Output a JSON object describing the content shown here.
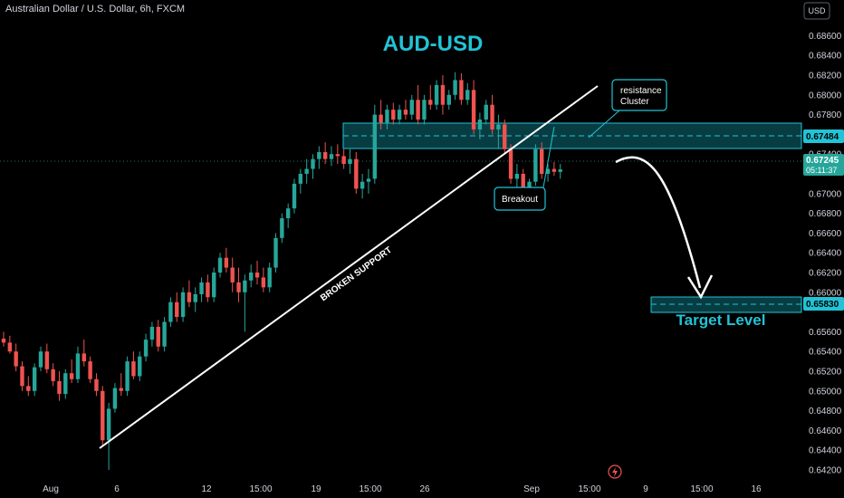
{
  "header": {
    "symbol_title": "Australian Dollar / U.S. Dollar, 6h, FXCM"
  },
  "price_axis": {
    "currency_button": "USD",
    "ticks": [
      "0.68600",
      "0.68400",
      "0.68200",
      "0.68000",
      "0.67800",
      "0.67600",
      "0.67400",
      "0.67000",
      "0.66800",
      "0.66600",
      "0.66400",
      "0.66200",
      "0.66000",
      "0.65600",
      "0.65400",
      "0.65200",
      "0.65000",
      "0.64800",
      "0.64600",
      "0.64400",
      "0.64200"
    ],
    "tag_resistance": "0.67484",
    "tag_last_price": "0.67245",
    "tag_countdown": "05:11:37",
    "tag_target": "0.65830"
  },
  "time_axis": {
    "ticks": [
      "Aug",
      "6",
      "12",
      "15:00",
      "19",
      "15:00",
      "26",
      "Sep",
      "15:00",
      "9",
      "15:00",
      "16"
    ]
  },
  "annotations": {
    "title": "AUD-USD",
    "resistance_cluster": "resistance Cluster",
    "resistance_cluster_line1": "resistance",
    "resistance_cluster_line2": "Cluster",
    "breakout": "Breakout",
    "broken_support": "BROKEN SUPPORT",
    "target_level": "Target Level"
  },
  "colors": {
    "background": "#000000",
    "bull": "#26a69a",
    "bear": "#ef5350",
    "accent": "#22c3d6",
    "zone_fill": "#0d6f78",
    "text": "#d1d4dc"
  },
  "icons": {
    "flash": "lightning-icon"
  },
  "chart_data": {
    "type": "candlestick",
    "instrument": "AUD/USD",
    "timeframe": "6h",
    "y_range": [
      0.641,
      0.6875
    ],
    "last_price": 0.67245,
    "resistance_zone": [
      0.6738,
      0.6764
    ],
    "resistance_level": 0.67484,
    "target_zone": [
      0.6576,
      0.6591
    ],
    "target_level": 0.6583,
    "candles": [
      [
        0.6553,
        0.656,
        0.6545,
        0.6549
      ],
      [
        0.6549,
        0.6556,
        0.6538,
        0.654
      ],
      [
        0.654,
        0.6548,
        0.652,
        0.6525
      ],
      [
        0.6525,
        0.653,
        0.65,
        0.6505
      ],
      [
        0.6505,
        0.6515,
        0.6495,
        0.65
      ],
      [
        0.65,
        0.6528,
        0.6495,
        0.6524
      ],
      [
        0.6524,
        0.6545,
        0.652,
        0.654
      ],
      [
        0.654,
        0.6548,
        0.6518,
        0.6522
      ],
      [
        0.6522,
        0.6528,
        0.6505,
        0.651
      ],
      [
        0.651,
        0.652,
        0.649,
        0.6497
      ],
      [
        0.6497,
        0.6522,
        0.6492,
        0.6518
      ],
      [
        0.6518,
        0.6532,
        0.6508,
        0.6512
      ],
      [
        0.6512,
        0.6545,
        0.6508,
        0.6538
      ],
      [
        0.6538,
        0.6552,
        0.6525,
        0.653
      ],
      [
        0.653,
        0.6535,
        0.6508,
        0.6512
      ],
      [
        0.6512,
        0.6518,
        0.6495,
        0.65
      ],
      [
        0.65,
        0.6505,
        0.6445,
        0.645
      ],
      [
        0.645,
        0.6488,
        0.642,
        0.6482
      ],
      [
        0.6482,
        0.6508,
        0.6478,
        0.6503
      ],
      [
        0.6503,
        0.6518,
        0.6495,
        0.65
      ],
      [
        0.65,
        0.6535,
        0.6495,
        0.653
      ],
      [
        0.653,
        0.654,
        0.6512,
        0.6515
      ],
      [
        0.6515,
        0.654,
        0.651,
        0.6535
      ],
      [
        0.6535,
        0.6558,
        0.653,
        0.6552
      ],
      [
        0.6552,
        0.657,
        0.6545,
        0.6565
      ],
      [
        0.6565,
        0.6572,
        0.654,
        0.6545
      ],
      [
        0.6545,
        0.6575,
        0.654,
        0.657
      ],
      [
        0.657,
        0.6595,
        0.6565,
        0.659
      ],
      [
        0.659,
        0.66,
        0.657,
        0.6575
      ],
      [
        0.6575,
        0.6605,
        0.657,
        0.66
      ],
      [
        0.66,
        0.6612,
        0.6585,
        0.659
      ],
      [
        0.659,
        0.6605,
        0.658,
        0.6598
      ],
      [
        0.6598,
        0.6615,
        0.659,
        0.661
      ],
      [
        0.661,
        0.6618,
        0.659,
        0.6595
      ],
      [
        0.6595,
        0.6625,
        0.659,
        0.662
      ],
      [
        0.662,
        0.664,
        0.6615,
        0.6635
      ],
      [
        0.6635,
        0.6645,
        0.662,
        0.6625
      ],
      [
        0.6625,
        0.6635,
        0.66,
        0.661
      ],
      [
        0.661,
        0.6625,
        0.659,
        0.66
      ],
      [
        0.66,
        0.6618,
        0.656,
        0.6612
      ],
      [
        0.6612,
        0.6628,
        0.6605,
        0.662
      ],
      [
        0.662,
        0.6632,
        0.6608,
        0.6615
      ],
      [
        0.6615,
        0.6625,
        0.66,
        0.6605
      ],
      [
        0.6605,
        0.663,
        0.66,
        0.6625
      ],
      [
        0.6625,
        0.666,
        0.662,
        0.6655
      ],
      [
        0.6655,
        0.668,
        0.665,
        0.6675
      ],
      [
        0.6675,
        0.669,
        0.6665,
        0.6685
      ],
      [
        0.6685,
        0.6715,
        0.668,
        0.671
      ],
      [
        0.671,
        0.6725,
        0.67,
        0.672
      ],
      [
        0.672,
        0.6735,
        0.671,
        0.6725
      ],
      [
        0.6725,
        0.674,
        0.6715,
        0.6735
      ],
      [
        0.6735,
        0.6748,
        0.6725,
        0.6742
      ],
      [
        0.6742,
        0.6752,
        0.673,
        0.6735
      ],
      [
        0.6735,
        0.6748,
        0.6728,
        0.674
      ],
      [
        0.674,
        0.675,
        0.673,
        0.6738
      ],
      [
        0.6738,
        0.6745,
        0.6725,
        0.673
      ],
      [
        0.673,
        0.6745,
        0.672,
        0.6735
      ],
      [
        0.6735,
        0.6742,
        0.67,
        0.6705
      ],
      [
        0.6705,
        0.672,
        0.6695,
        0.6712
      ],
      [
        0.6712,
        0.6725,
        0.67,
        0.6715
      ],
      [
        0.6715,
        0.679,
        0.671,
        0.678
      ],
      [
        0.678,
        0.6795,
        0.6765,
        0.6772
      ],
      [
        0.6772,
        0.679,
        0.6765,
        0.6785
      ],
      [
        0.6785,
        0.6792,
        0.677,
        0.6775
      ],
      [
        0.6775,
        0.679,
        0.677,
        0.6785
      ],
      [
        0.6785,
        0.6795,
        0.6775,
        0.678
      ],
      [
        0.678,
        0.68,
        0.6775,
        0.6795
      ],
      [
        0.6795,
        0.681,
        0.677,
        0.6775
      ],
      [
        0.6775,
        0.68,
        0.677,
        0.6795
      ],
      [
        0.6795,
        0.681,
        0.6785,
        0.679
      ],
      [
        0.679,
        0.6815,
        0.6785,
        0.681
      ],
      [
        0.681,
        0.682,
        0.678,
        0.679
      ],
      [
        0.679,
        0.6805,
        0.6785,
        0.68
      ],
      [
        0.68,
        0.6823,
        0.6795,
        0.6815
      ],
      [
        0.6815,
        0.6822,
        0.679,
        0.6795
      ],
      [
        0.6795,
        0.6812,
        0.679,
        0.6805
      ],
      [
        0.6805,
        0.6815,
        0.676,
        0.6765
      ],
      [
        0.6765,
        0.6782,
        0.6755,
        0.6775
      ],
      [
        0.6775,
        0.6795,
        0.677,
        0.679
      ],
      [
        0.679,
        0.68,
        0.676,
        0.6765
      ],
      [
        0.6765,
        0.678,
        0.6745,
        0.677
      ],
      [
        0.677,
        0.6775,
        0.674,
        0.6745
      ],
      [
        0.6745,
        0.675,
        0.671,
        0.6715
      ],
      [
        0.6715,
        0.673,
        0.6705,
        0.672
      ],
      [
        0.672,
        0.6725,
        0.669,
        0.67
      ],
      [
        0.67,
        0.6715,
        0.6695,
        0.6712
      ],
      [
        0.6712,
        0.675,
        0.6708,
        0.6745
      ],
      [
        0.6745,
        0.6752,
        0.6715,
        0.672
      ],
      [
        0.672,
        0.673,
        0.6712,
        0.6725
      ],
      [
        0.6725,
        0.6732,
        0.6718,
        0.6722
      ],
      [
        0.6722,
        0.673,
        0.6715,
        0.67245
      ]
    ],
    "trendlines": [
      {
        "label": "BROKEN SUPPORT",
        "from": {
          "bar": 17,
          "price": 0.6441
        },
        "to": {
          "bar": 100,
          "price": 0.68
        }
      }
    ]
  }
}
